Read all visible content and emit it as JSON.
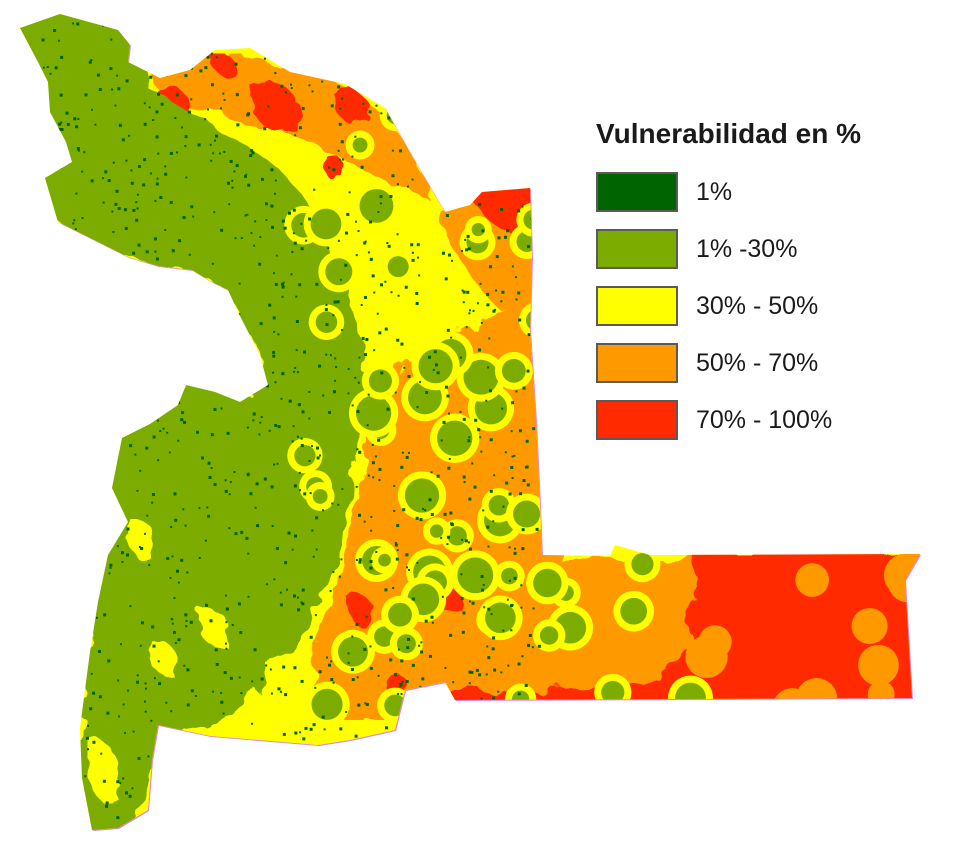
{
  "legend": {
    "title": "Vulnerabilidad en %",
    "items": [
      {
        "label": "1%",
        "color": "#006400"
      },
      {
        "label": "1% -30%",
        "color": "#7dac00"
      },
      {
        "label": "30% - 50%",
        "color": "#ffff00"
      },
      {
        "label": "50% - 70%",
        "color": "#ff9900"
      },
      {
        "label": "70% - 100%",
        "color": "#ff2a00"
      }
    ]
  },
  "colors": {
    "background": "#ffffff",
    "border_fringe": "#cc33cc"
  }
}
